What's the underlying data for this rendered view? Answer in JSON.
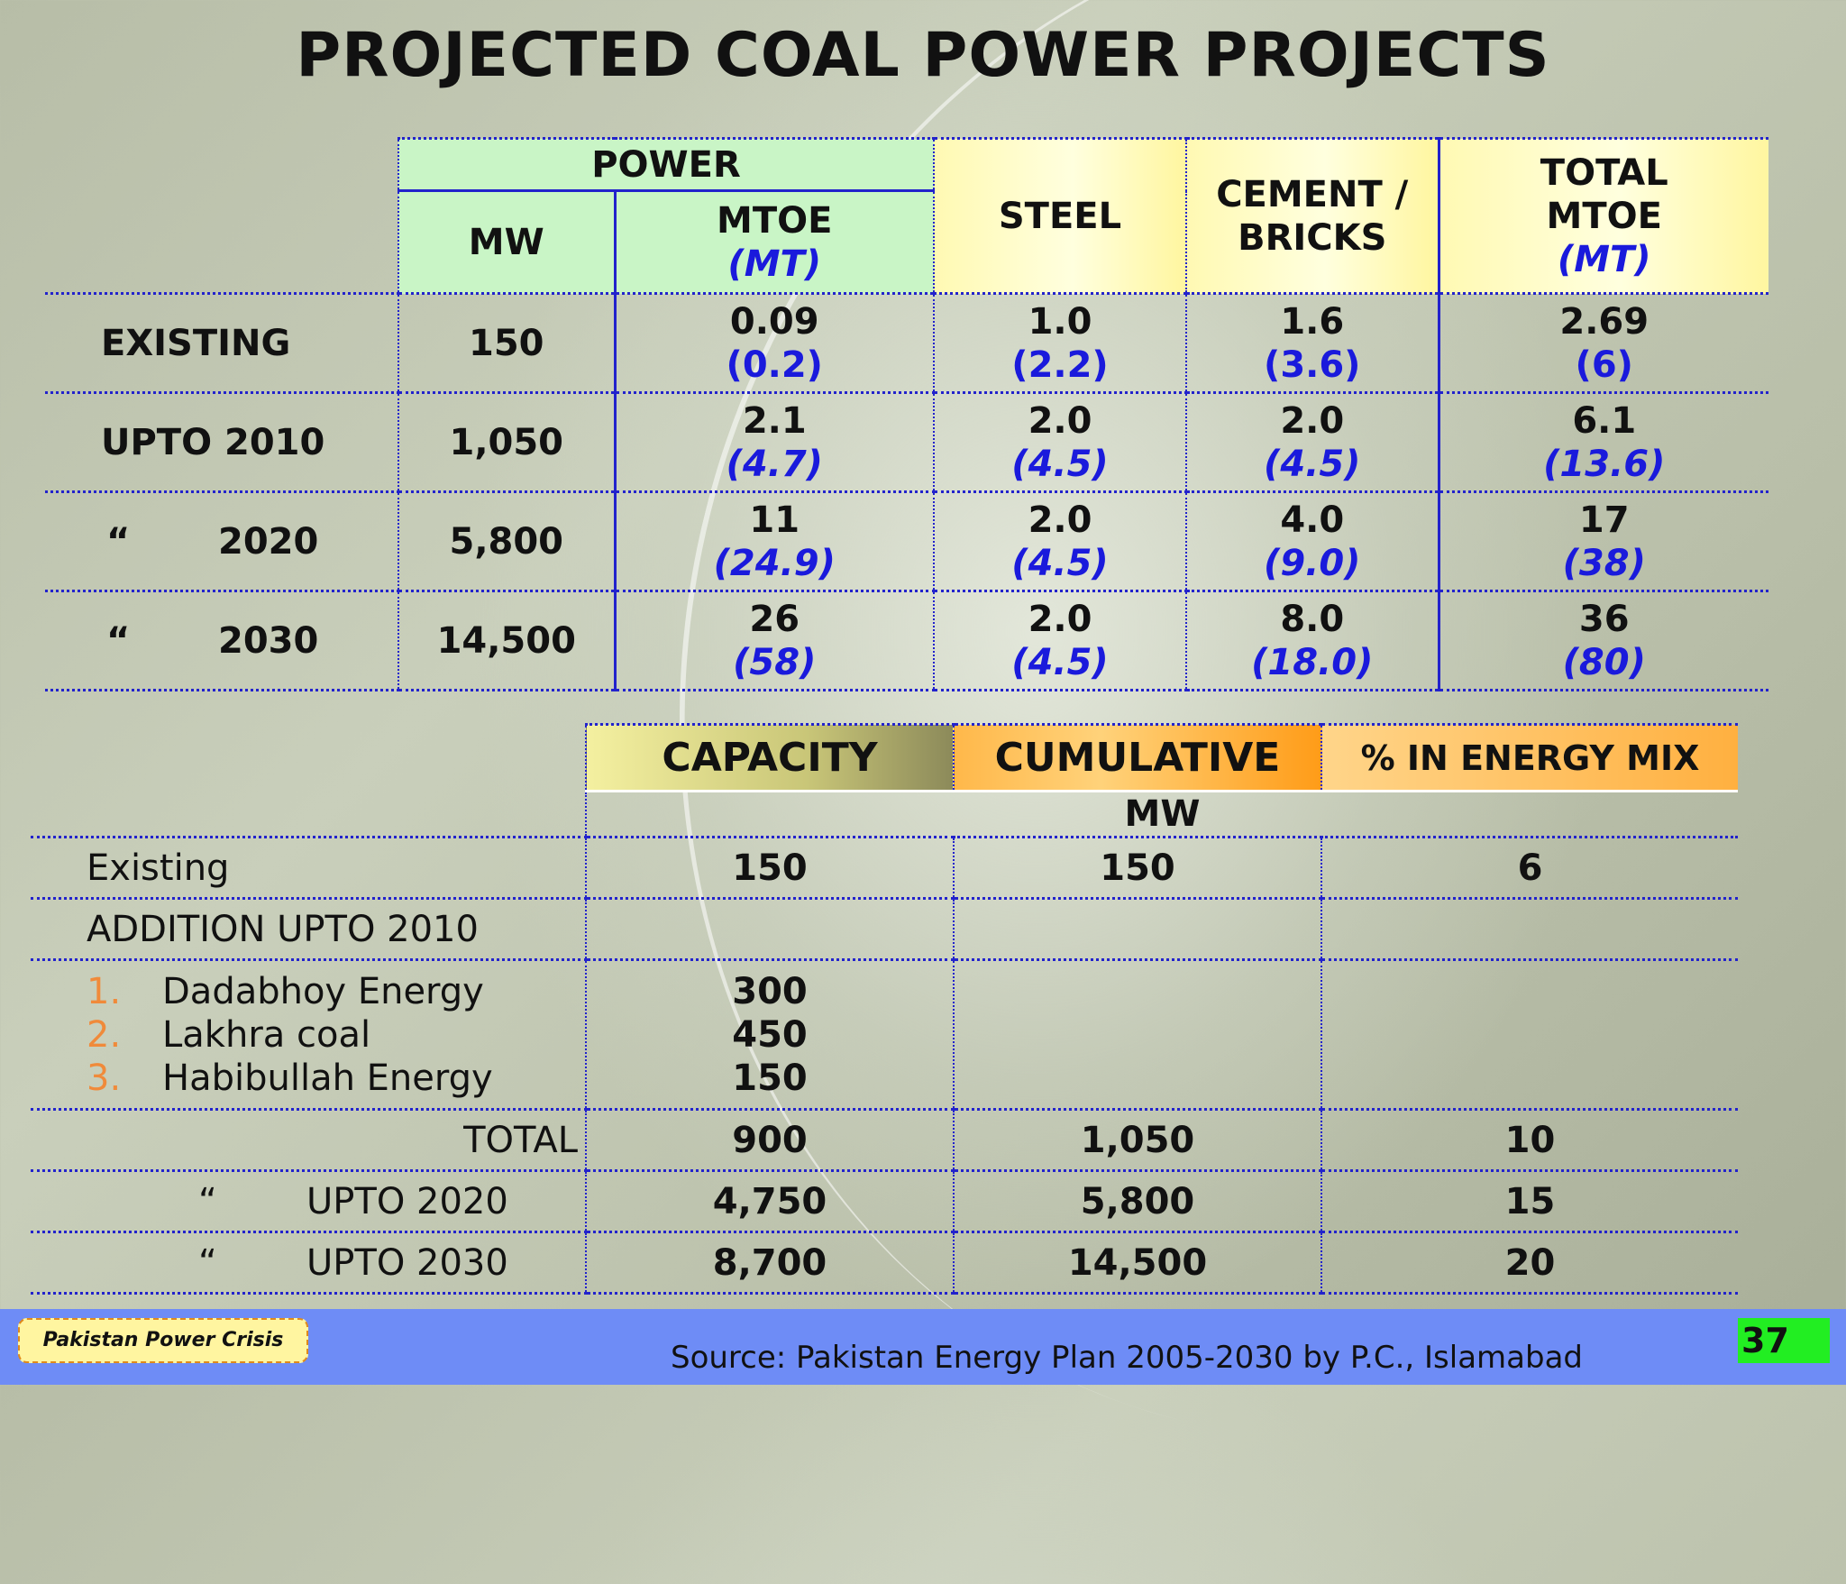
{
  "title": "PROJECTED COAL POWER PROJECTS",
  "top_table": {
    "header": {
      "power": "POWER",
      "mw": "MW",
      "mtoe": "MTOE",
      "mtoe_unit": "(MT)",
      "steel": "STEEL",
      "cement_1": "CEMENT /",
      "cement_2": "BRICKS",
      "total_1": "TOTAL",
      "total_2": "MTOE",
      "total_unit": "(MT)"
    },
    "rows": [
      {
        "ditto": "",
        "label": "EXISTING",
        "mw": "150",
        "mtoe": "0.09",
        "mtoe_mt": "(0.2)",
        "steel": "1.0",
        "steel_mt": "(2.2)",
        "cement": "1.6",
        "cement_mt": "(3.6)",
        "total": "2.69",
        "total_mt": "(6)"
      },
      {
        "ditto": "",
        "label": "UPTO 2010",
        "mw": "1,050",
        "mtoe": "2.1",
        "mtoe_mt": "(4.7)",
        "steel": "2.0",
        "steel_mt": "(4.5)",
        "cement": "2.0",
        "cement_mt": "(4.5)",
        "total": "6.1",
        "total_mt": "(13.6)"
      },
      {
        "ditto": "“",
        "label": "2020",
        "mw": "5,800",
        "mtoe": "11",
        "mtoe_mt": "(24.9)",
        "steel": "2.0",
        "steel_mt": "(4.5)",
        "cement": "4.0",
        "cement_mt": "(9.0)",
        "total": "17",
        "total_mt": "(38)"
      },
      {
        "ditto": "“",
        "label": "2030",
        "mw": "14,500",
        "mtoe": "26",
        "mtoe_mt": "(58)",
        "steel": "2.0",
        "steel_mt": "(4.5)",
        "cement": "8.0",
        "cement_mt": "(18.0)",
        "total": "36",
        "total_mt": "(80)"
      }
    ]
  },
  "bottom_table": {
    "header": {
      "capacity": "CAPACITY",
      "cumulative": "CUMULATIVE",
      "pct": "% IN ENERGY MIX",
      "unit": "MW"
    },
    "existing": {
      "label": "Existing",
      "capacity": "150",
      "cumulative": "150",
      "pct": "6"
    },
    "addition_label": "ADDITION UPTO 2010",
    "projects": [
      {
        "num": "1.",
        "name": "Dadabhoy Energy",
        "capacity": "300"
      },
      {
        "num": "2.",
        "name": "Lakhra coal",
        "capacity": "450"
      },
      {
        "num": "3.",
        "name": "Habibullah Energy",
        "capacity": "150"
      }
    ],
    "total": {
      "label": "TOTAL",
      "capacity": "900",
      "cumulative": "1,050",
      "pct": "10"
    },
    "upto_2020": {
      "ditto": "“",
      "label": "UPTO 2020",
      "capacity": "4,750",
      "cumulative": "5,800",
      "pct": "15"
    },
    "upto_2030": {
      "ditto": "“",
      "label": "UPTO 2030",
      "capacity": "8,700",
      "cumulative": "14,500",
      "pct": "20"
    }
  },
  "footer": {
    "badge": "Pakistan Power Crisis",
    "source": "Source: Pakistan Energy Plan 2005-2030 by P.C., Islamabad",
    "page_number": "37"
  }
}
